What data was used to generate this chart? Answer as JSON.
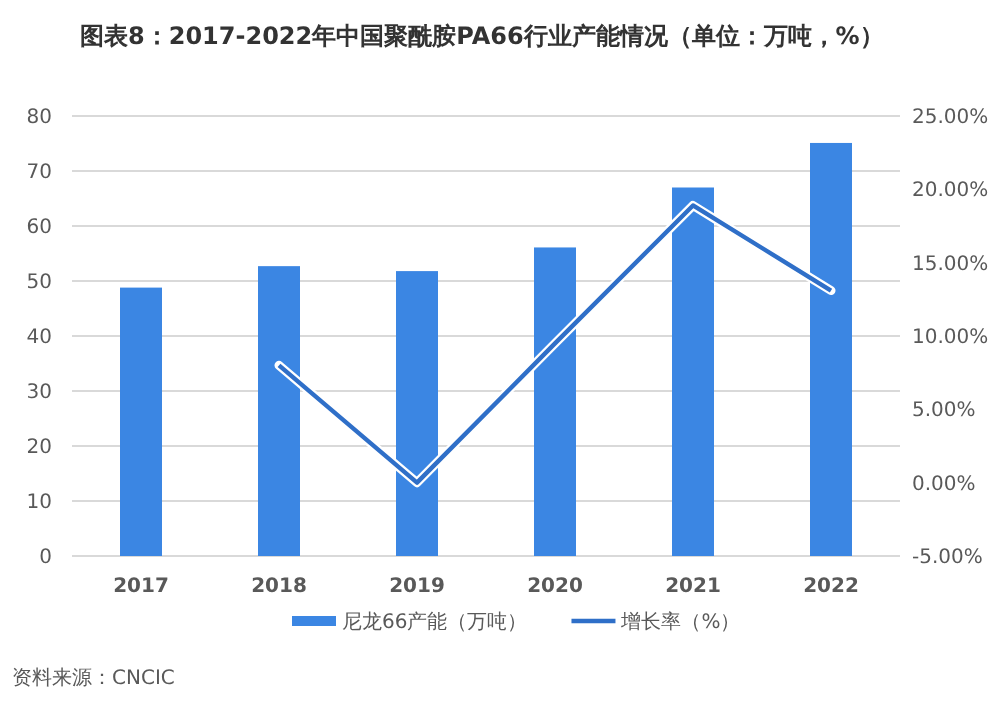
{
  "chart_data": {
    "type": "bar",
    "title": "图表8：2017-2022年中国聚酰胺PA66行业产能情况（单位：万吨，%）",
    "categories": [
      "2017",
      "2018",
      "2019",
      "2020",
      "2021",
      "2022"
    ],
    "series": [
      {
        "name": "尼龙66产能（万吨）",
        "color": "#3b86e3",
        "values": [
          48.8,
          52.7,
          51.8,
          56.1,
          67.0,
          75.1
        ]
      },
      {
        "name": "增长率（%）",
        "type": "line",
        "axis": "y2",
        "color": "#2f6fc8",
        "values": [
          null,
          8.0,
          0.0,
          9.5,
          18.9,
          13.1
        ]
      }
    ],
    "ylim": [
      0,
      80
    ],
    "yticks": [
      0,
      10,
      20,
      30,
      40,
      50,
      60,
      70,
      80
    ],
    "y2lim": [
      -5,
      25
    ],
    "y2ticks": [
      {
        "value": -5,
        "label": "-5.00%"
      },
      {
        "value": 0,
        "label": "0.00%"
      },
      {
        "value": 5,
        "label": "5.00%"
      },
      {
        "value": 10,
        "label": "10.00%"
      },
      {
        "value": 15,
        "label": "15.00%"
      },
      {
        "value": 20,
        "label": "20.00%"
      },
      {
        "value": 25,
        "label": "25.00%"
      }
    ],
    "grid": "y",
    "legend": "bottom",
    "marker": "none",
    "line_style": "solid",
    "annotations": [
      "资料来源：CNCIC"
    ]
  }
}
